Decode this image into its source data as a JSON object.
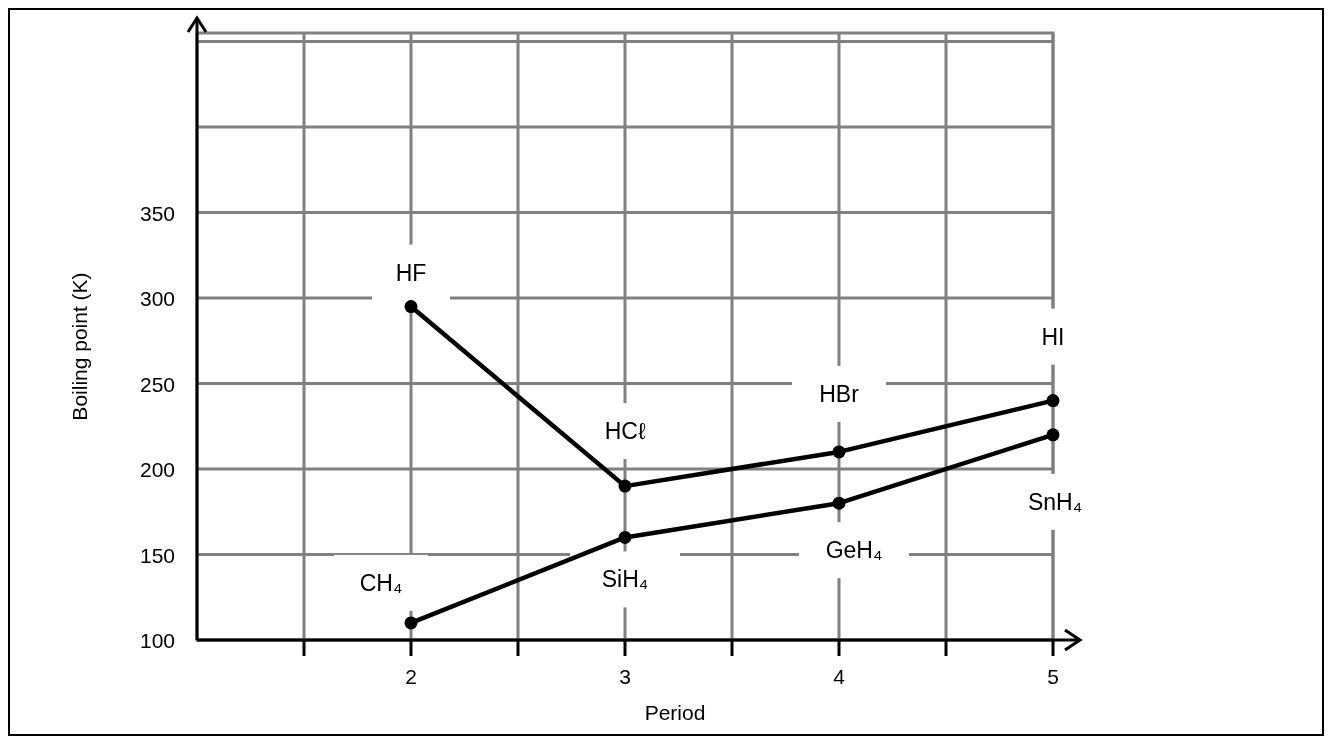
{
  "chart_data": {
    "type": "line",
    "xlabel": "Period",
    "ylabel": "Boiling point (K)",
    "xlim": [
      1,
      5
    ],
    "ylim": [
      100,
      455
    ],
    "xticks": [
      {
        "value": 1.5,
        "label": null
      },
      2,
      {
        "value": 2.5,
        "label": null
      },
      3,
      {
        "value": 3.5,
        "label": null
      },
      4,
      {
        "value": 4.5,
        "label": null
      },
      5
    ],
    "yticks": [
      100,
      150,
      200,
      250,
      300,
      350,
      {
        "value": 400,
        "label": null
      },
      {
        "value": 450,
        "label": null
      }
    ],
    "grid": true,
    "marker": "circle",
    "line_style": "solid",
    "series": [
      {
        "color": "#000000",
        "x": [
          2,
          3,
          4,
          5
        ],
        "values": [
          295,
          190,
          210,
          240
        ]
      },
      {
        "color": "#000000",
        "x": [
          2,
          3,
          4,
          5
        ],
        "values": [
          110,
          160,
          180,
          220
        ]
      }
    ],
    "annotations": [
      {
        "text": "HF",
        "x": 2,
        "y": 295
      },
      {
        "text": "HCℓ",
        "x": 3,
        "y": 190
      },
      {
        "text": "HBr",
        "x": 4,
        "y": 210
      },
      {
        "text": "HI",
        "x": 5,
        "y": 240
      },
      {
        "text": "CH₄",
        "x": 2,
        "y": 110
      },
      {
        "text": "SiH₄",
        "x": 3,
        "y": 160
      },
      {
        "text": "GeH₄",
        "x": 4,
        "y": 180
      },
      {
        "text": "SnH₄",
        "x": 5,
        "y": 220
      }
    ]
  }
}
